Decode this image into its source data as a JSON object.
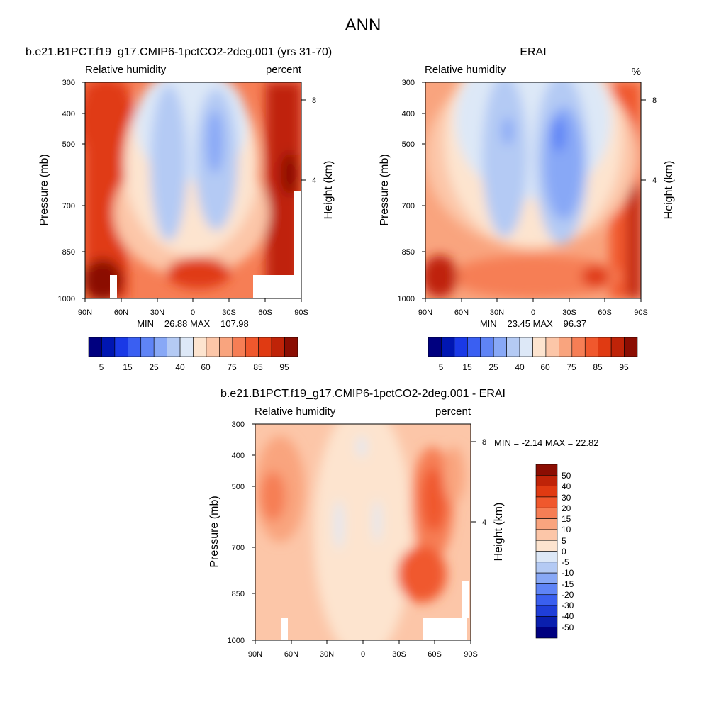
{
  "figure_title": "ANN",
  "chart_data": [
    {
      "type": "heatmap",
      "title": "b.e21.B1PCT.f19_g17.CMIP6-1pctCO2-2deg.001 (yrs 31-70)",
      "left_label": "Relative humidity",
      "right_label": "percent",
      "ylabel": "Pressure (mb)",
      "y2label": "Height (km)",
      "x_ticks": [
        "90N",
        "60N",
        "30N",
        "0",
        "30S",
        "60S",
        "90S"
      ],
      "x_values": [
        90,
        60,
        30,
        0,
        -30,
        -60,
        -90
      ],
      "y_ticks": [
        "300",
        "400",
        "500",
        "700",
        "850",
        "1000"
      ],
      "y_values": [
        300,
        400,
        500,
        700,
        850,
        1000
      ],
      "y2_ticks": [
        "8",
        "4"
      ],
      "y2_values": [
        8,
        4
      ],
      "ylim": [
        1000,
        300
      ],
      "min_label": "MIN =  26.88  MAX = 107.98",
      "stats": {
        "min": 26.88,
        "max": 107.98
      },
      "colorbar_ticks": [
        "5",
        "15",
        "25",
        "40",
        "60",
        "75",
        "85",
        "95"
      ]
    },
    {
      "type": "heatmap",
      "title": "ERAI",
      "left_label": "Relative humidity",
      "right_label": "%",
      "ylabel": "Pressure (mb)",
      "y2label": "Height (km)",
      "x_ticks": [
        "90N",
        "60N",
        "30N",
        "0",
        "30S",
        "60S",
        "90S"
      ],
      "x_values": [
        90,
        60,
        30,
        0,
        -30,
        -60,
        -90
      ],
      "y_ticks": [
        "300",
        "400",
        "500",
        "700",
        "850",
        "1000"
      ],
      "y_values": [
        300,
        400,
        500,
        700,
        850,
        1000
      ],
      "y2_ticks": [
        "8",
        "4"
      ],
      "y2_values": [
        8,
        4
      ],
      "ylim": [
        1000,
        300
      ],
      "min_label": "MIN =  23.45  MAX =  96.37",
      "stats": {
        "min": 23.45,
        "max": 96.37
      },
      "colorbar_ticks": [
        "5",
        "15",
        "25",
        "40",
        "60",
        "75",
        "85",
        "95"
      ]
    },
    {
      "type": "heatmap",
      "title": "b.e21.B1PCT.f19_g17.CMIP6-1pctCO2-2deg.001 - ERAI",
      "left_label": "Relative humidity",
      "right_label": "percent",
      "ylabel": "Pressure (mb)",
      "y2label": "Height (km)",
      "x_ticks": [
        "90N",
        "60N",
        "30N",
        "0",
        "30S",
        "60S",
        "90S"
      ],
      "x_values": [
        90,
        60,
        30,
        0,
        -30,
        -60,
        -90
      ],
      "y_ticks": [
        "300",
        "400",
        "500",
        "700",
        "850",
        "1000"
      ],
      "y_values": [
        300,
        400,
        500,
        700,
        850,
        1000
      ],
      "y2_ticks": [
        "8",
        "4"
      ],
      "y2_values": [
        8,
        4
      ],
      "ylim": [
        1000,
        300
      ],
      "min_label": "MIN =  -2.14  MAX =  22.82",
      "stats": {
        "min": -2.14,
        "max": 22.82
      },
      "colorbar_ticks": [
        "50",
        "40",
        "30",
        "20",
        "15",
        "10",
        "5",
        "0",
        "-5",
        "-10",
        "-15",
        "-20",
        "-30",
        "-40",
        "-50"
      ]
    }
  ],
  "colors": {
    "rh_scale": [
      "#00007f",
      "#0016b2",
      "#1a39e6",
      "#3a5ff2",
      "#5f84f6",
      "#88a8f6",
      "#b4caf4",
      "#dde8f7",
      "#fde4cf",
      "#fcc6a8",
      "#f9a47e",
      "#f67e55",
      "#f0582d",
      "#e03a12",
      "#bf2308",
      "#8b0d02"
    ],
    "diff_scale": [
      "#00007f",
      "#0a1fae",
      "#1f3ed8",
      "#3a5fef",
      "#5f84f6",
      "#88a8f6",
      "#b4caf4",
      "#dde8f7",
      "#fde4cf",
      "#fcc6a8",
      "#f9a47e",
      "#f67e55",
      "#f0582d",
      "#e03a12",
      "#bf2308",
      "#8b0d02"
    ]
  }
}
